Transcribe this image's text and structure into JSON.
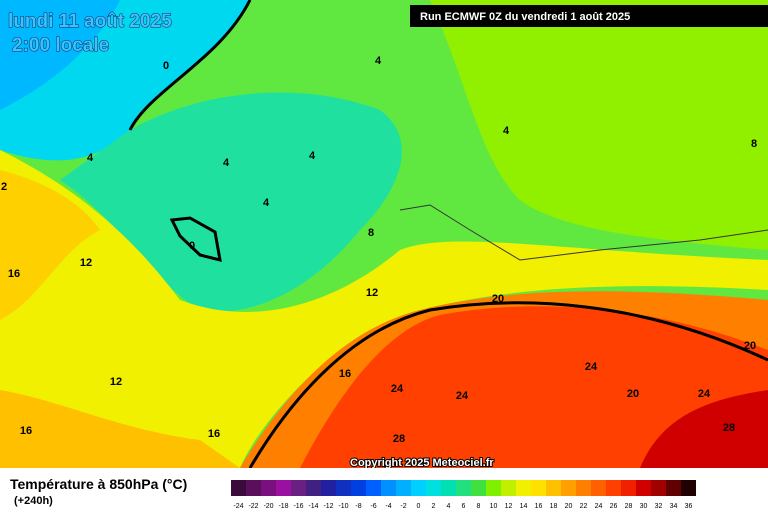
{
  "header": {
    "date": "lundi 11 août 2025",
    "time": "2:00 locale",
    "run": "Run ECMWF 0Z du vendredi 1 août 2025",
    "copyright": "Copyright 2025 Meteociel.fr"
  },
  "legend": {
    "title": "Température à 850hPa (°C)",
    "lead": "(+240h)",
    "ticks": [
      -24,
      -22,
      -20,
      -18,
      -16,
      -14,
      -12,
      -10,
      -8,
      -6,
      -4,
      -2,
      0,
      2,
      4,
      6,
      8,
      10,
      12,
      14,
      16,
      18,
      20,
      22,
      24,
      26,
      28,
      30,
      32,
      34,
      36
    ],
    "colors": [
      "#3a0a3a",
      "#5a0f5a",
      "#7a1080",
      "#9a10a0",
      "#6a2080",
      "#402080",
      "#2020a0",
      "#1030c0",
      "#0040e0",
      "#0060ff",
      "#0090ff",
      "#00b0ff",
      "#00d0ff",
      "#00e0e0",
      "#00e0b0",
      "#20e080",
      "#40e040",
      "#80f000",
      "#c0f000",
      "#f0f000",
      "#ffe000",
      "#ffc000",
      "#ffa000",
      "#ff8000",
      "#ff6000",
      "#ff4000",
      "#f02000",
      "#d00000",
      "#a00000",
      "#600000",
      "#200000"
    ]
  },
  "contour_labels": [
    0,
    4,
    4,
    4,
    4,
    4,
    4,
    0,
    8,
    8,
    12,
    12,
    12,
    16,
    16,
    16,
    16,
    20,
    20,
    20,
    24,
    24,
    24,
    24,
    28,
    28,
    2
  ]
}
